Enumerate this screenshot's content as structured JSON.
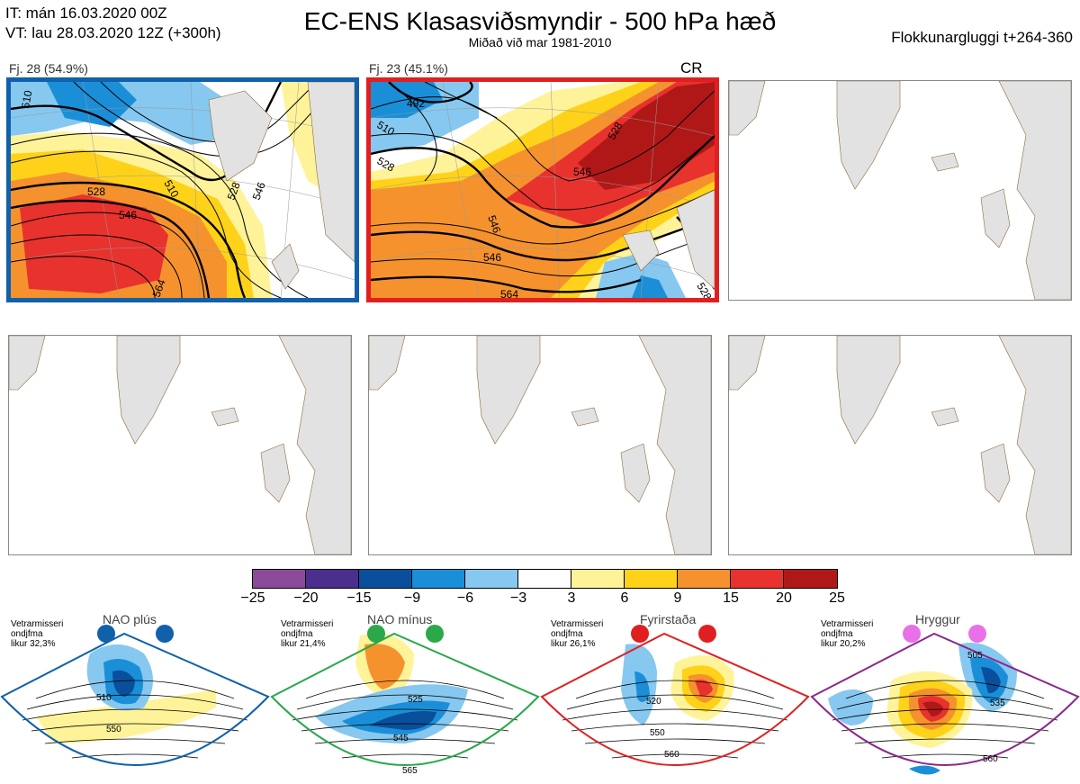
{
  "header": {
    "init_line": "IT: mán 16.03.2020 00Z",
    "valid_line": "VT: lau 28.03.2020 12Z  (+300h)",
    "title": "EC-ENS Klasasviðsmyndir - 500 hPa hæð",
    "subtitle": "Miðað við mar 1981-2010",
    "window": "Flokkunargluggi t+264-360"
  },
  "panels": [
    {
      "label": "Fj. 28 (54.9%)",
      "frame": "#1060aa",
      "contours": [
        "510",
        "528",
        "546",
        "510",
        "528",
        "546",
        "564"
      ]
    },
    {
      "label": "Fj. 23 (45.1%)",
      "badge": "CR",
      "frame": "#e02020",
      "contours": [
        "492",
        "510",
        "528",
        "546",
        "528",
        "546",
        "564",
        "528"
      ]
    },
    {
      "label": ""
    },
    {
      "label": ""
    },
    {
      "label": ""
    },
    {
      "label": ""
    }
  ],
  "colorbar": {
    "colors": [
      "#8c4a9a",
      "#4a2f8f",
      "#0a4f9c",
      "#1a8fd8",
      "#86c8ef",
      "#ffffff",
      "#fff39a",
      "#ffd21a",
      "#f5922e",
      "#e8322e",
      "#b01818"
    ],
    "ticks": [
      "−25",
      "−20",
      "−15",
      "−9",
      "−6",
      "−3",
      "3",
      "6",
      "9",
      "15",
      "20",
      "25"
    ]
  },
  "regimes": [
    {
      "title": "NAO plús",
      "note": [
        "Vetrarmisseri",
        "ondjfma",
        "likur 32,3%"
      ],
      "color": "#1060aa",
      "dot": "#1060aa",
      "contours": [
        "510",
        "550"
      ]
    },
    {
      "title": "NAO mínus",
      "note": [
        "Vetrarmisseri",
        "ondjfma",
        "likur 21,4%"
      ],
      "color": "#2aa84a",
      "dot": "#2aa84a",
      "contours": [
        "525",
        "545",
        "565"
      ]
    },
    {
      "title": "Fyrirstaða",
      "note": [
        "Vetrarmisseri",
        "ondjfma",
        "likur 26,1%"
      ],
      "color": "#e02020",
      "dot": "#e02020",
      "contours": [
        "520",
        "550",
        "560"
      ]
    },
    {
      "title": "Hryggur",
      "note": [
        "Vetrarmisseri",
        "ondjfma",
        "likur 20,2%"
      ],
      "color": "#8a2a8a",
      "dot": "#e870e8",
      "contours": [
        "505",
        "535",
        "560"
      ]
    }
  ]
}
